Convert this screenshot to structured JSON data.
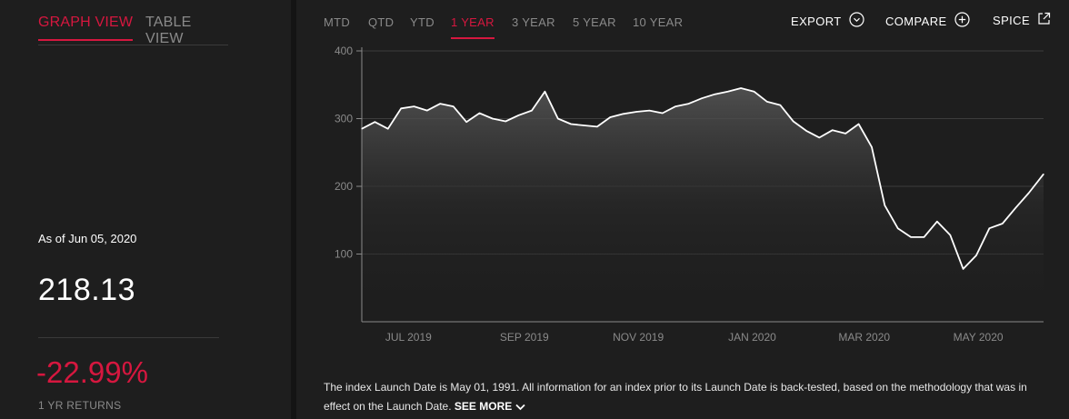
{
  "views": {
    "graph": "GRAPH VIEW",
    "table": "TABLE VIEW"
  },
  "summary": {
    "as_of": "As of Jun 05, 2020",
    "value": "218.13",
    "return": "-22.99%",
    "return_label": "1 YR RETURNS"
  },
  "ranges": [
    "MTD",
    "QTD",
    "YTD",
    "1 YEAR",
    "3 YEAR",
    "5 YEAR",
    "10 YEAR"
  ],
  "active_range": "1 YEAR",
  "actions": {
    "export": "EXPORT",
    "compare": "COMPARE",
    "spice": "SPICE"
  },
  "colors": {
    "accent": "#d6173f",
    "background": "#1e1e1e",
    "line": "#ffffff"
  },
  "icons": {
    "export": "chevron-circle-icon",
    "compare": "plus-circle-icon",
    "spice": "external-link-icon"
  },
  "note": {
    "text": "The index Launch Date is May 01, 1991. All information for an index prior to its Launch Date is back-tested, based on the methodology that was in effect on the Launch Date.",
    "see_more": "SEE MORE"
  },
  "chart_data": {
    "type": "area",
    "y_ticks": [
      "100",
      "200",
      "300",
      "400"
    ],
    "x_ticks": [
      "JUL 2019",
      "SEP 2019",
      "NOV 2019",
      "JAN 2020",
      "MAR 2020",
      "MAY 2020"
    ],
    "ylim": [
      0,
      400
    ],
    "xlim": [
      "2019-06-06",
      "2020-06-05"
    ],
    "grid": true,
    "x": [
      "2019-06-06",
      "2019-06-13",
      "2019-06-20",
      "2019-06-27",
      "2019-07-04",
      "2019-07-11",
      "2019-07-18",
      "2019-07-25",
      "2019-08-01",
      "2019-08-08",
      "2019-08-15",
      "2019-08-22",
      "2019-08-29",
      "2019-09-05",
      "2019-09-12",
      "2019-09-19",
      "2019-09-26",
      "2019-10-03",
      "2019-10-10",
      "2019-10-17",
      "2019-10-24",
      "2019-10-31",
      "2019-11-07",
      "2019-11-14",
      "2019-11-21",
      "2019-11-28",
      "2019-12-05",
      "2019-12-12",
      "2019-12-19",
      "2019-12-26",
      "2020-01-02",
      "2020-01-09",
      "2020-01-16",
      "2020-01-23",
      "2020-01-30",
      "2020-02-06",
      "2020-02-13",
      "2020-02-20",
      "2020-02-27",
      "2020-03-05",
      "2020-03-12",
      "2020-03-19",
      "2020-03-26",
      "2020-04-02",
      "2020-04-09",
      "2020-04-16",
      "2020-04-23",
      "2020-04-30",
      "2020-05-07",
      "2020-05-14",
      "2020-05-21",
      "2020-05-28",
      "2020-06-05"
    ],
    "values": [
      285,
      295,
      285,
      315,
      318,
      312,
      322,
      318,
      295,
      308,
      300,
      296,
      305,
      312,
      340,
      300,
      292,
      290,
      288,
      302,
      307,
      310,
      312,
      308,
      318,
      322,
      330,
      336,
      340,
      345,
      340,
      325,
      320,
      296,
      282,
      272,
      283,
      278,
      292,
      258,
      172,
      138,
      125,
      125,
      148,
      128,
      78,
      98,
      138,
      145,
      168,
      190,
      218
    ]
  }
}
